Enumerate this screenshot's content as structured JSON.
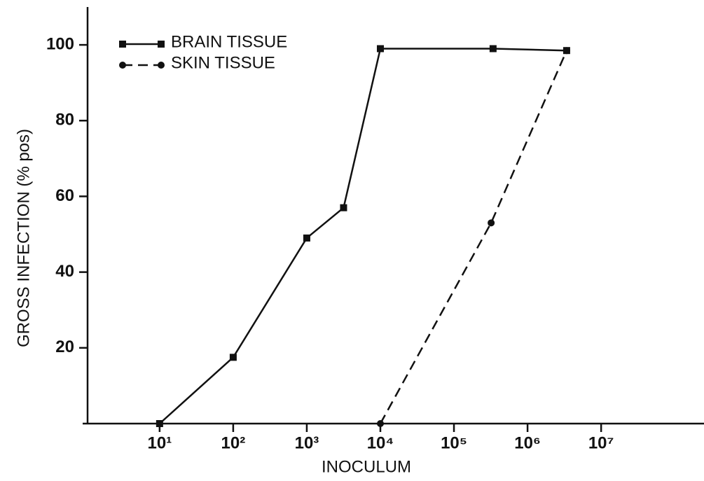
{
  "chart_data": {
    "type": "line",
    "xlabel": "INOCULUM",
    "ylabel": "GROSS INFECTION (% pos)",
    "xscale": "log",
    "xlim": [
      0.9,
      250000000
    ],
    "ylim": [
      0,
      110
    ],
    "xticks": [
      {
        "value": 10,
        "label": "10¹"
      },
      {
        "value": 100,
        "label": "10²"
      },
      {
        "value": 1000,
        "label": "10³"
      },
      {
        "value": 10000,
        "label": "10⁴"
      },
      {
        "value": 100000,
        "label": "10⁵"
      },
      {
        "value": 1000000,
        "label": "10⁶"
      },
      {
        "value": 10000000,
        "label": "10⁷"
      }
    ],
    "yticks": [
      20,
      40,
      60,
      80,
      100
    ],
    "legend": "upper left",
    "series": [
      {
        "name": "BRAIN TISSUE",
        "color": "#111111",
        "dash": false,
        "marker": "square",
        "x": [
          10,
          100,
          1000,
          3162,
          10000,
          340000,
          3400000
        ],
        "values": [
          0,
          17.5,
          49,
          57,
          99,
          99,
          98.5
        ]
      },
      {
        "name": "SKIN TISSUE",
        "color": "#111111",
        "dash": true,
        "marker": "circle",
        "x": [
          10000,
          320000,
          3400000
        ],
        "values": [
          0,
          53,
          98.5
        ]
      }
    ]
  }
}
